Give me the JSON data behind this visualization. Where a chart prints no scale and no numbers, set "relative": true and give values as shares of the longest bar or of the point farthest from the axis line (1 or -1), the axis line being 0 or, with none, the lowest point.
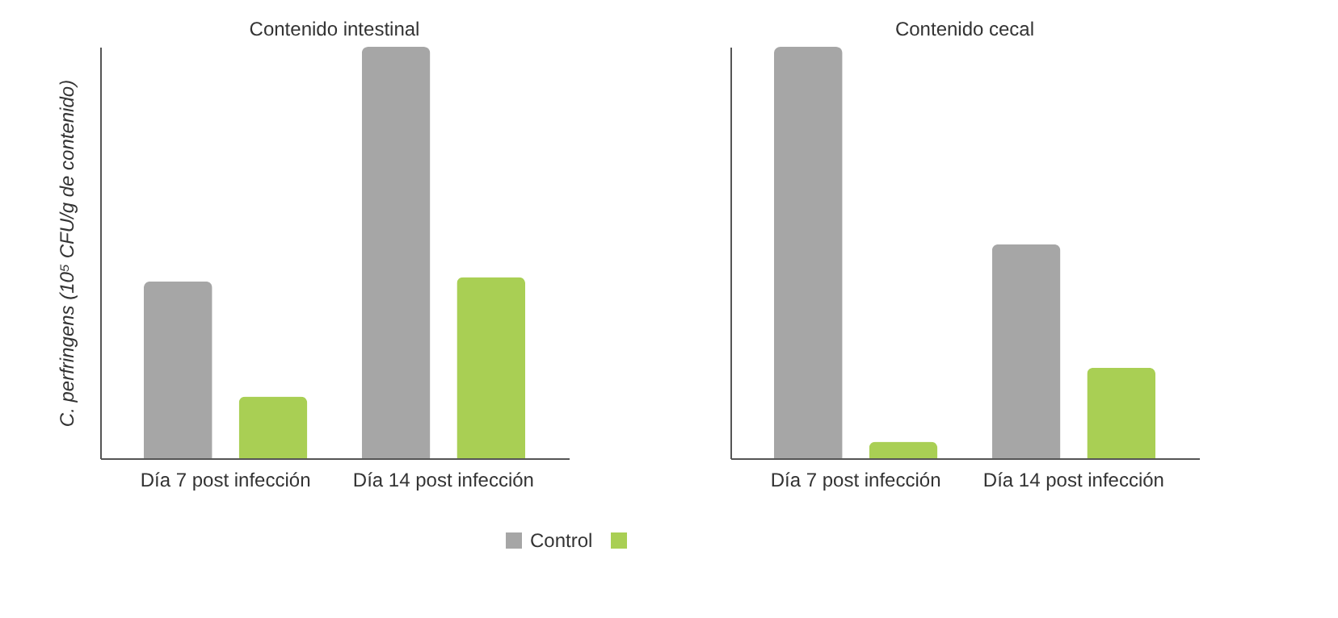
{
  "chart_data": [
    {
      "type": "bar",
      "title": "Contenido intestinal",
      "ylabel": "C. perfringens (10⁵ CFU/g de contenido)",
      "categories": [
        "Día 7 post infección",
        "Día 14 post infección"
      ],
      "relative": true,
      "legend": "bottom",
      "series": [
        {
          "name": "Control",
          "color": "#a6a6a6",
          "values": [
            0.43,
            1
          ]
        },
        {
          "color": "#a9cf54",
          "values": [
            0.15,
            0.44
          ]
        }
      ]
    },
    {
      "type": "bar",
      "title": "Contenido cecal",
      "categories": [
        "Día 7 post infección",
        "Día 14 post infección"
      ],
      "relative": true,
      "legend": "bottom",
      "series": [
        {
          "name": "Control",
          "color": "#a6a6a6",
          "values": [
            1,
            0.52
          ]
        },
        {
          "color": "#a9cf54",
          "values": [
            0.04,
            0.22
          ]
        }
      ]
    }
  ]
}
